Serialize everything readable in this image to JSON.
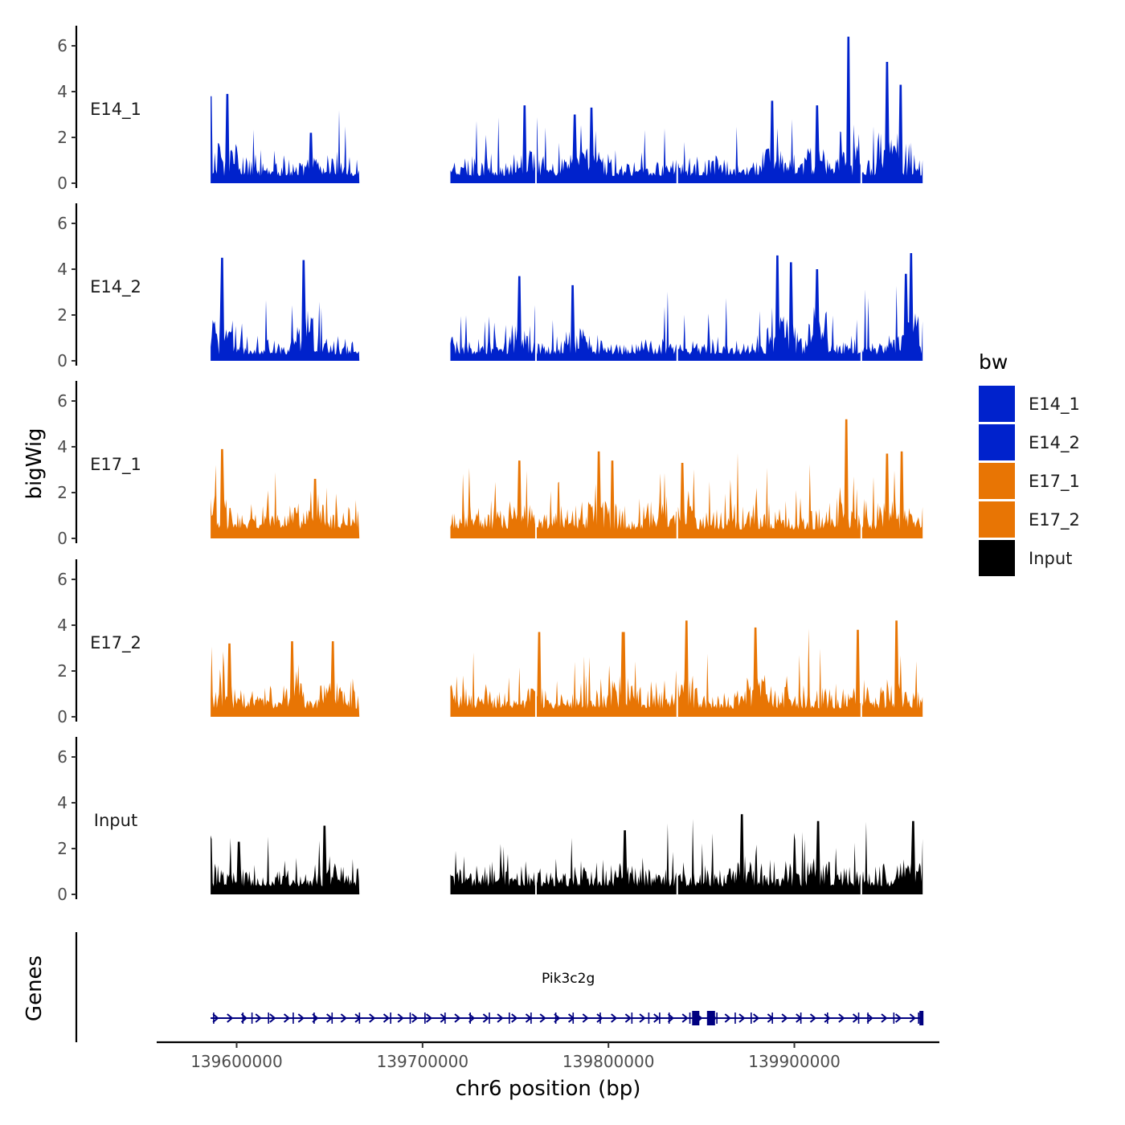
{
  "chart_data": {
    "type": "area",
    "ylabel": "bigWig",
    "xlabel": "chr6 position (bp)",
    "genes_label": "Genes",
    "ylim": [
      0,
      6.5
    ],
    "y_ticks": [
      0,
      2,
      4,
      6
    ],
    "y_tick_labels": [
      "0",
      "2",
      "4",
      "6"
    ],
    "xlim": [
      139557000,
      139978000
    ],
    "x_ticks": [
      139600000,
      139700000,
      139800000,
      139900000
    ],
    "x_tick_labels": [
      "139600000",
      "139700000",
      "139800000",
      "139900000"
    ],
    "coverage_segments": [
      [
        139586000,
        139666000
      ],
      [
        139715000,
        139969000
      ]
    ],
    "internal_gaps": [
      139761000,
      139837000,
      139936000
    ],
    "tracks": [
      {
        "name": "E14_1",
        "color": "#0022CC",
        "peaks": [
          [
            139586000,
            3.8
          ],
          [
            139595000,
            3.9
          ],
          [
            139640000,
            2.2
          ],
          [
            139755000,
            3.4
          ],
          [
            139782000,
            3.0
          ],
          [
            139791000,
            3.3
          ],
          [
            139888000,
            3.6
          ],
          [
            139912000,
            3.4
          ],
          [
            139929000,
            6.4
          ],
          [
            139950000,
            5.3
          ],
          [
            139957000,
            4.3
          ]
        ],
        "base_level": 0.9
      },
      {
        "name": "E14_2",
        "color": "#0022CC",
        "peaks": [
          [
            139592000,
            4.5
          ],
          [
            139636000,
            4.4
          ],
          [
            139752000,
            3.7
          ],
          [
            139781000,
            3.3
          ],
          [
            139891000,
            4.6
          ],
          [
            139898000,
            4.3
          ],
          [
            139912000,
            4.0
          ],
          [
            139960000,
            3.8
          ],
          [
            139963000,
            4.7
          ]
        ],
        "base_level": 0.8
      },
      {
        "name": "E17_1",
        "color": "#E87504",
        "peaks": [
          [
            139592000,
            3.9
          ],
          [
            139642000,
            2.6
          ],
          [
            139752000,
            3.4
          ],
          [
            139795000,
            3.8
          ],
          [
            139802000,
            3.4
          ],
          [
            139840000,
            3.3
          ],
          [
            139928000,
            5.2
          ],
          [
            139950000,
            3.7
          ],
          [
            139958000,
            3.8
          ]
        ],
        "base_level": 1.1
      },
      {
        "name": "E17_2",
        "color": "#E87504",
        "peaks": [
          [
            139596000,
            3.2
          ],
          [
            139630000,
            3.3
          ],
          [
            139652000,
            3.3
          ],
          [
            139763000,
            3.7
          ],
          [
            139808000,
            3.7
          ],
          [
            139842000,
            4.2
          ],
          [
            139879000,
            3.9
          ],
          [
            139934000,
            3.8
          ],
          [
            139955000,
            4.2
          ]
        ],
        "base_level": 1.0
      },
      {
        "name": "Input",
        "color": "#000000",
        "peaks": [
          [
            139601000,
            2.3
          ],
          [
            139647000,
            3.0
          ],
          [
            139809000,
            2.8
          ],
          [
            139872000,
            3.5
          ],
          [
            139913000,
            3.2
          ],
          [
            139964000,
            3.2
          ]
        ],
        "base_level": 1.0
      }
    ],
    "gene": {
      "name": "Pik3c2g",
      "start": 139586000,
      "end": 139969000,
      "strand": "+",
      "color": "#000080"
    },
    "legend": {
      "title": "bw",
      "entries": [
        {
          "label": "E14_1",
          "color": "#0022CC"
        },
        {
          "label": "E14_2",
          "color": "#0022CC"
        },
        {
          "label": "E17_1",
          "color": "#E87504"
        },
        {
          "label": "E17_2",
          "color": "#E87504"
        },
        {
          "label": "Input",
          "color": "#000000"
        }
      ]
    }
  }
}
